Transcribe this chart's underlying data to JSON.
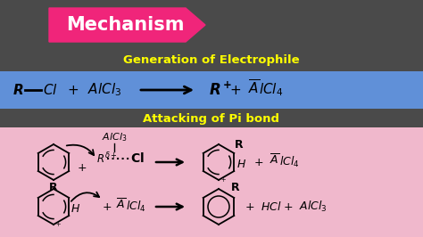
{
  "bg_color": "#4a4a4a",
  "title_box_color": "#f0257a",
  "title_text": "Mechanism",
  "title_text_color": "#ffffff",
  "blue_band_color": "#6090d8",
  "pink_band_color": "#f0b8cc",
  "gen_electro_text": "Generation of Electrophile",
  "gen_electro_color": "#ffff00",
  "attack_pi_text": "Attacking of Pi bond",
  "attack_pi_color": "#ffff00",
  "black": "#000000",
  "white": "#ffffff"
}
